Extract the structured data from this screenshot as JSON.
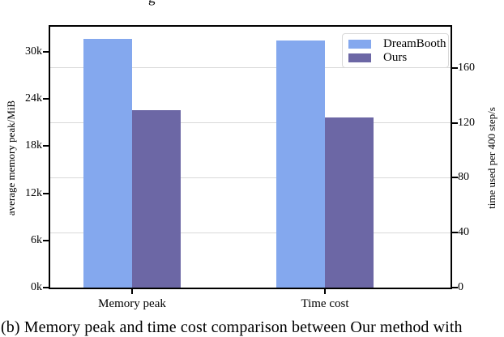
{
  "page": {
    "caption": "(b) Memory peak and time cost comparison between Our method with",
    "clipped_text_fragment": "g"
  },
  "chart_data": {
    "type": "bar",
    "title": "",
    "categories": [
      "Memory peak",
      "Time cost"
    ],
    "category_axis": [
      "left",
      "right"
    ],
    "series": [
      {
        "name": "DreamBooth",
        "color": "#84a8ee",
        "values": [
          31700,
          180
        ]
      },
      {
        "name": "Ours",
        "color": "#6c67a5",
        "values": [
          22600,
          124
        ]
      }
    ],
    "left_axis": {
      "label": "average memory peak/MiB",
      "tick_labels": [
        "0k",
        "6k",
        "12k",
        "18k",
        "24k",
        "30k"
      ],
      "tick_values": [
        0,
        6000,
        12000,
        18000,
        24000,
        30000
      ],
      "max": 33200
    },
    "right_axis": {
      "label": "time used per 400 step/s",
      "tick_labels": [
        "0",
        "40",
        "80",
        "120",
        "160"
      ],
      "tick_values": [
        0,
        40,
        80,
        120,
        160
      ],
      "max": 190
    },
    "legend": {
      "position": "upper right",
      "entries": [
        "DreamBooth",
        "Ours"
      ]
    },
    "grid": "horizontal gridlines aligned to right-axis ticks",
    "colors": {
      "spine": "#000000",
      "gridline": "#d9d9d9"
    }
  }
}
